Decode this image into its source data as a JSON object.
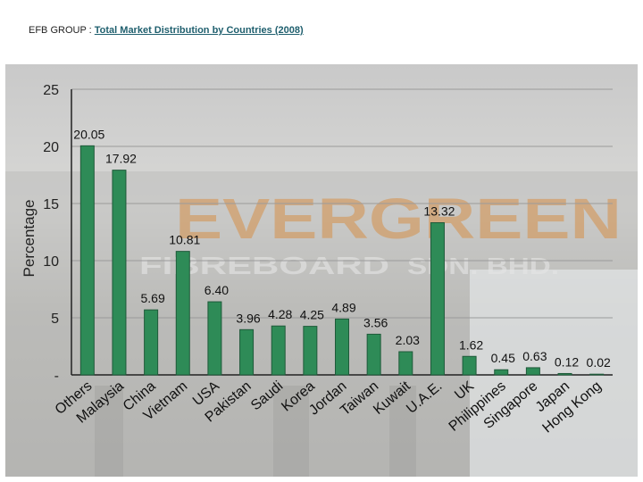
{
  "header": {
    "prefix": "EFB GROUP : ",
    "title": "Total Market Distribution by Countries (2008)"
  },
  "watermark": {
    "line1": "EVERGREEN",
    "line2": "FIBREBOARD",
    "line3": "SDN. BHD."
  },
  "colors": {
    "bar": "#2e8b57",
    "bar_stroke": "#1f5a3a",
    "axis": "#222222",
    "grid": "#9a9a9a"
  },
  "chart_data": {
    "type": "bar",
    "title": "Total Market Distribution by Countries (2008)",
    "xlabel": "",
    "ylabel": "Percentage",
    "ylim": [
      0,
      25
    ],
    "yticks": [
      0,
      5,
      10,
      15,
      20,
      25
    ],
    "ytick_labels": [
      "-",
      "5",
      "10",
      "15",
      "20",
      "25"
    ],
    "grid": true,
    "categories": [
      "Others",
      "Malaysia",
      "China",
      "Vietnam",
      "USA",
      "Pakistan",
      "Saudi",
      "Korea",
      "Jordan",
      "Taiwan",
      "Kuwait",
      "U.A.E.",
      "UK",
      "Philippines",
      "Singapore",
      "Japan",
      "Hong Kong"
    ],
    "values": [
      20.05,
      17.92,
      5.69,
      10.81,
      6.4,
      3.96,
      4.28,
      4.25,
      4.89,
      3.56,
      2.03,
      13.32,
      1.62,
      0.45,
      0.63,
      0.12,
      0.02
    ],
    "value_labels": [
      "20.05",
      "17.92",
      "5.69",
      "10.81",
      "6.40",
      "3.96",
      "4.28",
      "4.25",
      "4.89",
      "3.56",
      "2.03",
      "13.32",
      "1.62",
      "0.45",
      "0.63",
      "0.12",
      "0.02"
    ]
  }
}
